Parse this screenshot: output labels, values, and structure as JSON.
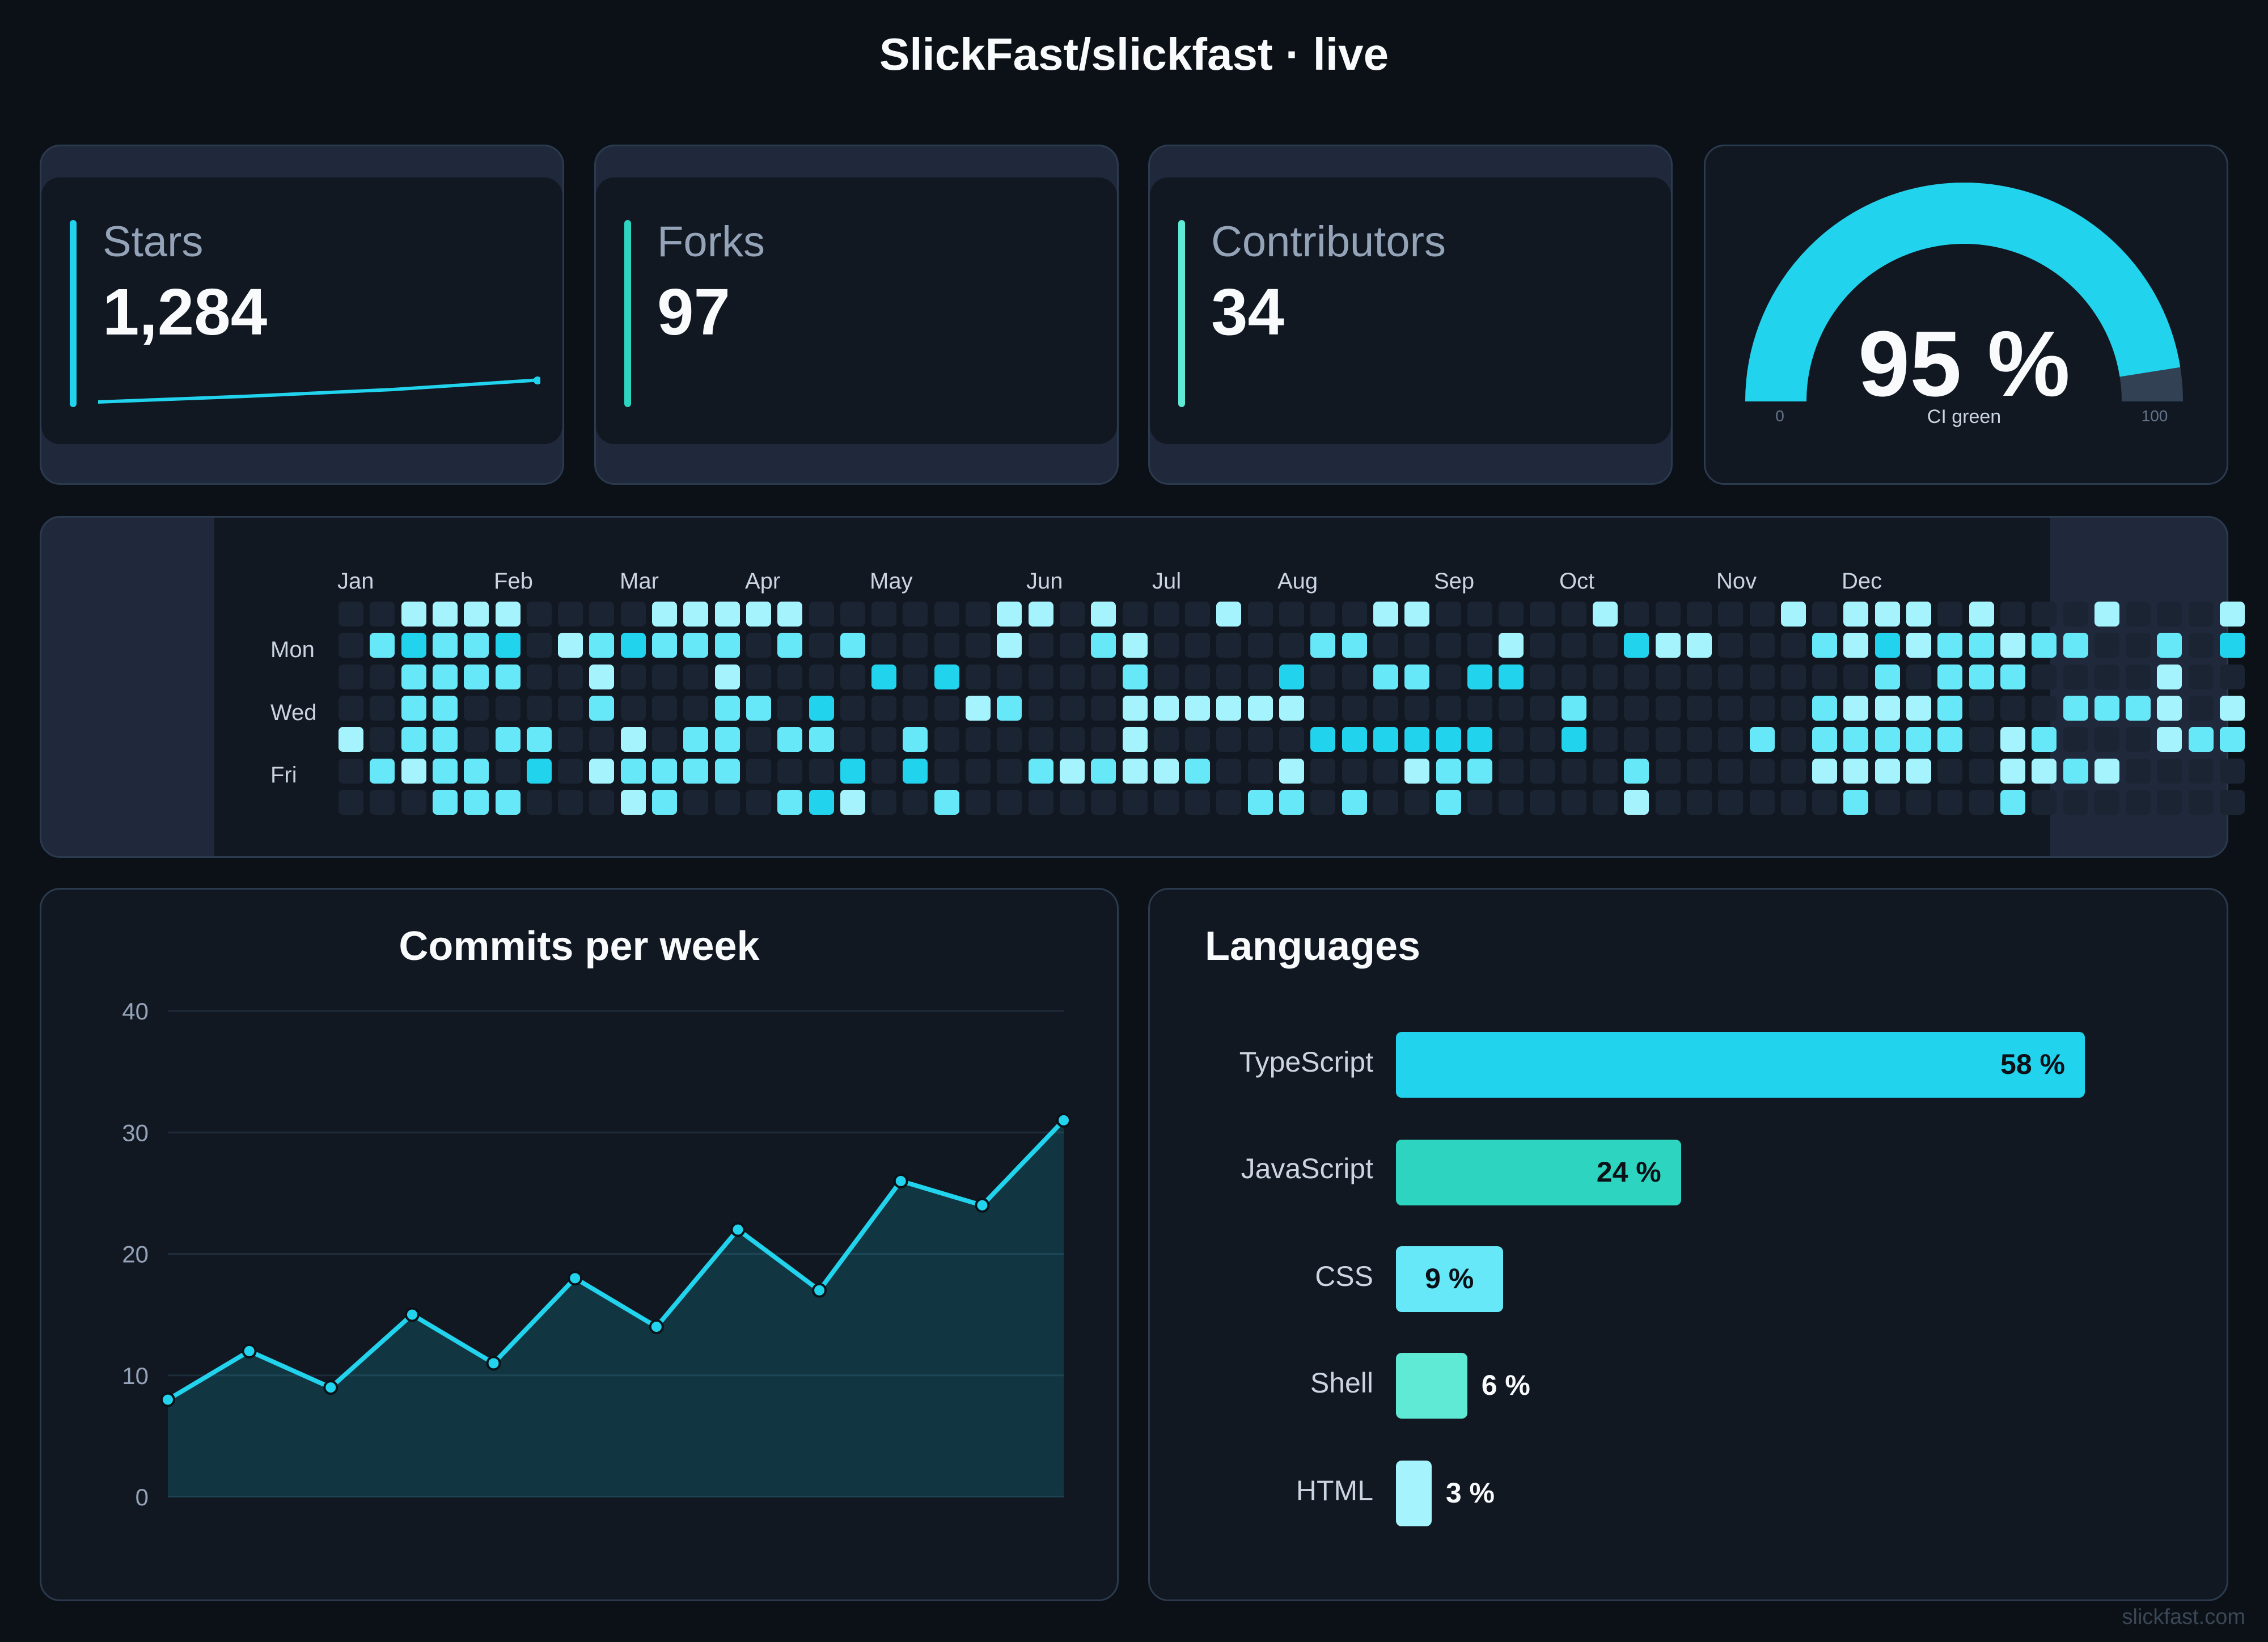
{
  "header": {
    "title": "SlickFast/slickfast · live"
  },
  "colors": {
    "background": "#0b1117",
    "card": "#111822",
    "cyan": "#22d3ee",
    "teal": "#2dd4bf",
    "light_cyan": "#67e8f9",
    "pale_cyan": "#a5f3fc",
    "empty_cell": "#1b2433"
  },
  "stats": [
    {
      "label": "Stars",
      "value": "1,284",
      "accent": "#22d3ee"
    },
    {
      "label": "Forks",
      "value": "97",
      "accent": "#2dd4bf"
    },
    {
      "label": "Contributors",
      "value": "34",
      "accent": "#5eead4"
    }
  ],
  "stars_sparkline": {
    "icon": "sparkline",
    "values": [
      0,
      3,
      7,
      11,
      15
    ]
  },
  "gauge": {
    "value": 95,
    "display": "95 %",
    "label": "CI green",
    "min_label": "0",
    "max_label": "100"
  },
  "heatmap": {
    "months": [
      "Jan",
      "Feb",
      "Mar",
      "Apr",
      "May",
      "Jun",
      "Jul",
      "Aug",
      "Sep",
      "Oct",
      "Nov",
      "Dec"
    ],
    "day_labels": [
      "Mon",
      "Wed",
      "Fri"
    ],
    "palette": [
      "#1b2433",
      "#a5f3fc",
      "#67e8f9",
      "#22d3ee",
      "#06b6d4",
      "#0e9fb0"
    ],
    "grid": [
      "0011110000111110000001101000100001100000100000101110100010001",
      "0232230123222020200001002100000220000100031100021312212200203",
      "0022220010001000030300000200003002203300000000000202220000100",
      "0022000020002203000012000111111000000002000000021112000222101",
      "1022022001022022002000000100000333333003000002022222012000122",
      "0212203012222000303000212112001000122000020000011110011210000",
      "0002220001200023100200000000022020020000010000002000020000000"
    ]
  },
  "commits_chart": {
    "title": "Commits per week",
    "y_ticks": [
      "40",
      "30",
      "20",
      "10",
      "0"
    ]
  },
  "languages": {
    "title": "Languages",
    "items": [
      {
        "label": "TypeScript",
        "pct": "58 %",
        "value": 58,
        "color": "#22d3ee"
      },
      {
        "label": "JavaScript",
        "pct": "24 %",
        "value": 24,
        "color": "#2dd4bf"
      },
      {
        "label": "CSS",
        "pct": "9 %",
        "value": 9,
        "color": "#67e8f9"
      },
      {
        "label": "Shell",
        "pct": "6 %",
        "value": 6,
        "color": "#5eead4"
      },
      {
        "label": "HTML",
        "pct": "3 %",
        "value": 3,
        "color": "#a5f3fc"
      }
    ]
  },
  "chart_data": {
    "type": "area",
    "title": "Commits per week",
    "xlabel": "",
    "ylabel": "",
    "ylim": [
      0,
      40
    ],
    "y_ticks": [
      0,
      10,
      20,
      30,
      40
    ],
    "grid": true,
    "series": [
      {
        "values": [
          8,
          12,
          9,
          15,
          11,
          18,
          14,
          22,
          17,
          26,
          24,
          31
        ]
      }
    ]
  },
  "footer": {
    "text": "slickfast.com"
  }
}
